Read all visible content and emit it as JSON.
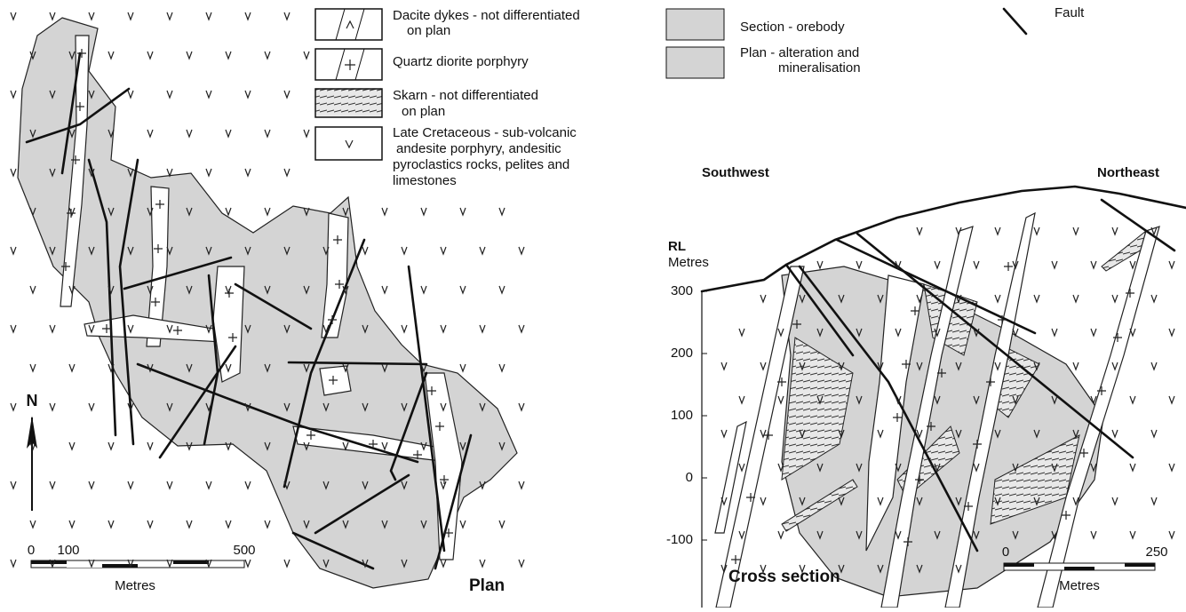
{
  "legend": {
    "items": [
      {
        "lines": [
          "Dacite dykes - not differentiated",
          "on plan"
        ]
      },
      {
        "lines": [
          "Quartz diorite porphyry"
        ]
      },
      {
        "lines": [
          "Skarn - not differentiated",
          "on plan"
        ]
      },
      {
        "lines": [
          "Late Cretaceous - sub-volcanic",
          "andesite porphyry, andesitic",
          "pyroclastics rocks, pelites and",
          "limestones"
        ]
      }
    ],
    "section_items": [
      {
        "lines": [
          "Section - orebody"
        ]
      },
      {
        "lines": [
          "Plan - alteration and",
          "mineralisation"
        ]
      }
    ],
    "fault": "Fault"
  },
  "plan": {
    "north": "N",
    "title": "Plan",
    "scale": {
      "ticks": [
        "0",
        "100",
        "500"
      ],
      "unit": "Metres"
    }
  },
  "section": {
    "southwest": "Southwest",
    "northeast": "Northeast",
    "axis_title": [
      "RL",
      "Metres"
    ],
    "rl_ticks": [
      "300",
      "200",
      "100",
      "0",
      "-100"
    ],
    "title": "Cross section",
    "scale": {
      "ticks": [
        "0",
        "250"
      ],
      "unit": "Metres"
    }
  }
}
